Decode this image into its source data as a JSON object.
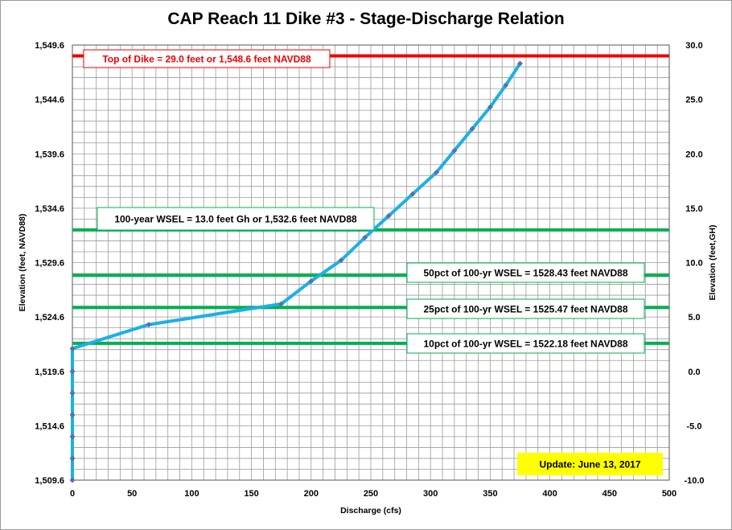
{
  "chart_data": {
    "type": "line",
    "title": "CAP Reach 11 Dike #3 - Stage-Discharge Relation",
    "xlabel": "Discharge (cfs)",
    "ylabel_left": "Elevation (feet, NAVD88)",
    "ylabel_right": "Elevation (feet,GH)",
    "xlim": [
      0,
      500
    ],
    "ylim_left": [
      1509.6,
      1549.6
    ],
    "ylim_right": [
      -10,
      30
    ],
    "x_ticks": [
      "0",
      "50",
      "100",
      "150",
      "200",
      "250",
      "300",
      "350",
      "400",
      "450",
      "500"
    ],
    "y_left_ticks": [
      "1,509.6",
      "1,514.6",
      "1,519.6",
      "1,524.6",
      "1,529.6",
      "1,534.6",
      "1,539.6",
      "1,544.6",
      "1,549.6"
    ],
    "y_right_ticks": [
      "-10.0",
      "-5.0",
      "0.0",
      "5.0",
      "10.0",
      "15.0",
      "20.0",
      "25.0",
      "30.0"
    ],
    "grid": true,
    "series": [
      {
        "color": "#1ab0e8",
        "marker_color": "#5a6fa8",
        "points": [
          [
            0,
            1509.6
          ],
          [
            0,
            1511.6
          ],
          [
            0,
            1513.6
          ],
          [
            0,
            1515.6
          ],
          [
            0,
            1517.6
          ],
          [
            0,
            1519.6
          ],
          [
            0,
            1521.7
          ],
          [
            64,
            1523.9
          ],
          [
            175,
            1525.8
          ],
          [
            200,
            1527.9
          ],
          [
            225,
            1529.8
          ],
          [
            245,
            1531.9
          ],
          [
            265,
            1533.9
          ],
          [
            285,
            1535.9
          ],
          [
            305,
            1537.9
          ],
          [
            320,
            1539.9
          ],
          [
            335,
            1541.9
          ],
          [
            350,
            1543.9
          ],
          [
            363,
            1545.9
          ],
          [
            375,
            1547.9
          ]
        ]
      }
    ],
    "reference_lines": [
      {
        "y": 1548.6,
        "color": "#ee0000",
        "x_start": 0,
        "label": "Top of Dike = 29.0  feet or 1,548.6  feet NAVD88",
        "label_color": "#ee0000"
      },
      {
        "y": 1532.6,
        "color": "#00b050",
        "x_start": 0,
        "label": "100-year WSEL = 13.0  feet Gh or 1,532.6  feet NAVD88",
        "label_color": "#000000"
      },
      {
        "y": 1528.43,
        "color": "#00b050",
        "x_start": 0,
        "label": "50pct of 100-yr WSEL = 1528.43  feet NAVD88",
        "label_color": "#000000"
      },
      {
        "y": 1525.47,
        "color": "#00b050",
        "x_start": 0,
        "label": "25pct of 100-yr WSEL = 1525.47  feet NAVD88",
        "label_color": "#000000"
      },
      {
        "y": 1522.18,
        "color": "#00b050",
        "x_start": 0,
        "label": "10pct of 100-yr WSEL = 1522.18  feet NAVD88",
        "label_color": "#000000"
      }
    ],
    "update_note": "Update: June 13, 2017",
    "update_note_bg": "#ffff00"
  }
}
